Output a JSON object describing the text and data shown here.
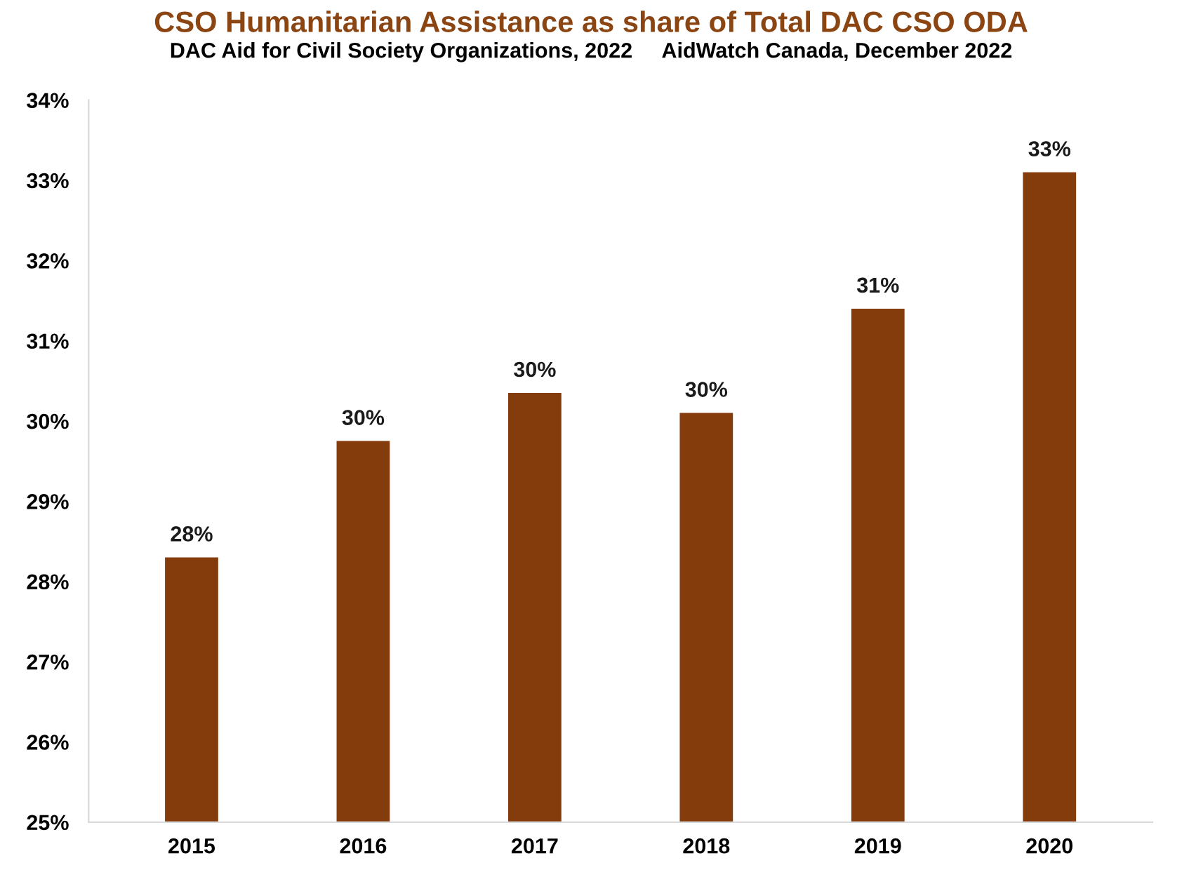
{
  "chart_data": {
    "type": "bar",
    "title": "CSO Humanitarian Assistance as share of Total DAC CSO ODA",
    "subtitle": "DAC Aid for Civil Society Organizations, 2022     AidWatch Canada, December 2022",
    "categories": [
      "2015",
      "2016",
      "2017",
      "2018",
      "2019",
      "2020"
    ],
    "values": [
      28.3,
      29.75,
      30.35,
      30.1,
      31.4,
      33.1
    ],
    "value_labels": [
      "28%",
      "30%",
      "30%",
      "30%",
      "31%",
      "33%"
    ],
    "color": "#843c0c",
    "ylim": [
      25,
      34
    ],
    "yticks": [
      {
        "value": 25,
        "label": "25%"
      },
      {
        "value": 26,
        "label": "26%"
      },
      {
        "value": 27,
        "label": "27%"
      },
      {
        "value": 28,
        "label": "28%"
      },
      {
        "value": 29,
        "label": "29%"
      },
      {
        "value": 30,
        "label": "30%"
      },
      {
        "value": 31,
        "label": "31%"
      },
      {
        "value": 32,
        "label": "32%"
      },
      {
        "value": 33,
        "label": "33%"
      },
      {
        "value": 34,
        "label": "34%"
      }
    ],
    "grid": false
  }
}
